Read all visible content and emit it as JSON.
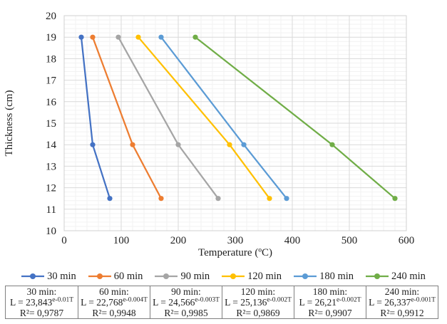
{
  "chart_data": {
    "type": "line",
    "title": "",
    "xlabel": "Temperature (ºC)",
    "ylabel": "Thickness (cm)",
    "xlim": [
      0,
      600
    ],
    "ylim": [
      10,
      20
    ],
    "x_ticks": [
      0,
      100,
      200,
      300,
      400,
      500,
      600
    ],
    "y_ticks": [
      10,
      11,
      12,
      13,
      14,
      15,
      16,
      17,
      18,
      19,
      20
    ],
    "x_minor_step": 20,
    "y_minor_step": 0.2,
    "grid": true,
    "legend_position": "bottom",
    "colors": {
      "major_grid": "#d9d9d9",
      "minor_grid": "#f2f2f2",
      "plot_border": "#d0d0d0",
      "text": "#1f1f1f"
    },
    "series": [
      {
        "name": "30 min",
        "color": "#4472C4",
        "points": [
          [
            30,
            19
          ],
          [
            50,
            14
          ],
          [
            80,
            11.5
          ]
        ]
      },
      {
        "name": "60 min",
        "color": "#ED7D31",
        "points": [
          [
            50,
            19
          ],
          [
            120,
            14
          ],
          [
            170,
            11.5
          ]
        ]
      },
      {
        "name": "90 min",
        "color": "#A5A5A5",
        "points": [
          [
            95,
            19
          ],
          [
            200,
            14
          ],
          [
            270,
            11.5
          ]
        ]
      },
      {
        "name": "120 min",
        "color": "#FFC000",
        "points": [
          [
            130,
            19
          ],
          [
            290,
            14
          ],
          [
            360,
            11.5
          ]
        ]
      },
      {
        "name": "180 min",
        "color": "#5B9BD5",
        "points": [
          [
            170,
            19
          ],
          [
            315,
            14
          ],
          [
            390,
            11.5
          ]
        ]
      },
      {
        "name": "240 min",
        "color": "#70AD47",
        "points": [
          [
            230,
            19
          ],
          [
            470,
            14
          ],
          [
            580,
            11.5
          ]
        ]
      }
    ]
  },
  "equations_table": {
    "cells": [
      {
        "time": "30 min:",
        "eq_base": "L = 23,843",
        "eq_sup": "e-0.01T",
        "r2": "R²= 0,9787"
      },
      {
        "time": "60 min:",
        "eq_base": "L = 22,768",
        "eq_sup": "e-0.004T",
        "r2": "R²= 0,9948"
      },
      {
        "time": "90 min:",
        "eq_base": "L = 24,566",
        "eq_sup": "e-0.003T",
        "r2": "R²= 0,9985"
      },
      {
        "time": "120 min:",
        "eq_base": "L = 25,136",
        "eq_sup": "e-0.002T",
        "r2": "R²= 0,9869"
      },
      {
        "time": "180 min:",
        "eq_base": "L = 26,21",
        "eq_sup": "e-0.002T",
        "r2": "R²= 0,9907"
      },
      {
        "time": "240 min:",
        "eq_base": "L = 26,337",
        "eq_sup": "e-0.001T",
        "r2": "R²= 0,9912"
      }
    ]
  }
}
